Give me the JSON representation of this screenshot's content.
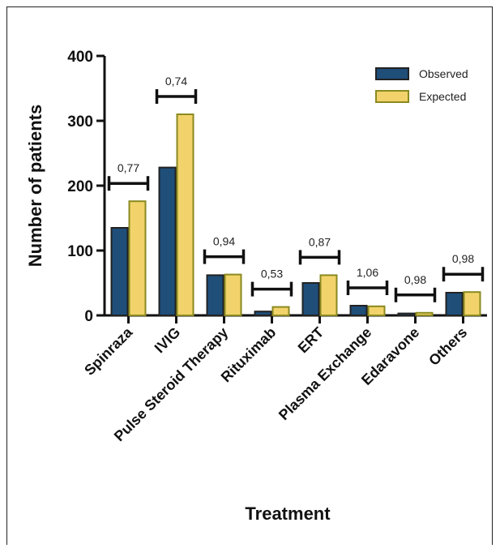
{
  "chart_data": {
    "type": "bar",
    "categories": [
      "Spinraza",
      "IVIG",
      "Pulse Steroid Therapy",
      "Rituximab",
      "ERT",
      "Plasma Exchange",
      "Edaravone",
      "Others"
    ],
    "series": [
      {
        "name": "Observed",
        "values": [
          135,
          228,
          62,
          6,
          50,
          15,
          3,
          35
        ],
        "color": "#1f4e79"
      },
      {
        "name": "Expected",
        "values": [
          176,
          310,
          63,
          13,
          62,
          14,
          4,
          36
        ],
        "color": "#f2d36b"
      }
    ],
    "p_values": [
      "0,77",
      "0,74",
      "0,94",
      "0,53",
      "0,87",
      "1,06",
      "0,98",
      "0,98"
    ],
    "xlabel": "Treatment",
    "ylabel": "Number of patients",
    "yticks": [
      0,
      100,
      200,
      300,
      400
    ],
    "ylim": [
      0,
      400
    ],
    "legend_position": "top-right",
    "grid": false,
    "bar_outline_color": "#8a8a20"
  }
}
